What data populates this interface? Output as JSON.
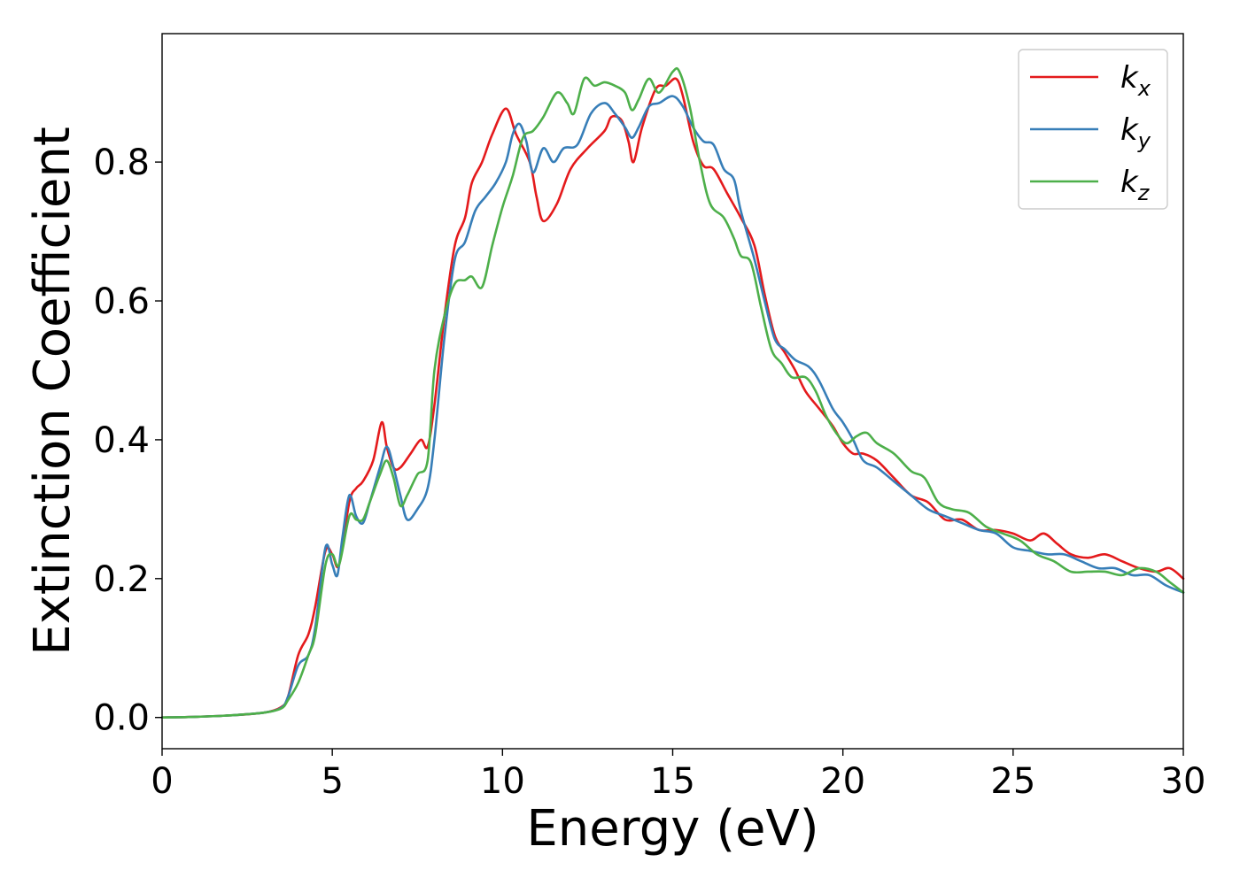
{
  "chart_data": {
    "type": "line",
    "title": "",
    "xlabel": "Energy (eV)",
    "ylabel": "Extinction Coefficient",
    "xlim": [
      0,
      30
    ],
    "ylim": [
      -0.045,
      0.985
    ],
    "xticks": [
      0,
      5,
      10,
      15,
      20,
      25,
      30
    ],
    "xtick_labels": [
      "0",
      "5",
      "10",
      "15",
      "20",
      "25",
      "30"
    ],
    "yticks": [
      0.0,
      0.2,
      0.4,
      0.6,
      0.8
    ],
    "ytick_labels": [
      "0.0",
      "0.2",
      "0.4",
      "0.6",
      "0.8"
    ],
    "grid": false,
    "legend_position": "top-right",
    "series": [
      {
        "name": "k",
        "subscript": "x",
        "color": "#e41a1c",
        "points": [
          [
            0,
            0
          ],
          [
            1,
            0.001
          ],
          [
            2,
            0.003
          ],
          [
            3,
            0.007
          ],
          [
            3.5,
            0.015
          ],
          [
            3.7,
            0.03
          ],
          [
            4.0,
            0.09
          ],
          [
            4.3,
            0.12
          ],
          [
            4.5,
            0.16
          ],
          [
            4.8,
            0.24
          ],
          [
            5.0,
            0.235
          ],
          [
            5.2,
            0.22
          ],
          [
            5.5,
            0.31
          ],
          [
            5.7,
            0.33
          ],
          [
            5.9,
            0.34
          ],
          [
            6.2,
            0.37
          ],
          [
            6.45,
            0.425
          ],
          [
            6.6,
            0.39
          ],
          [
            6.8,
            0.36
          ],
          [
            7.0,
            0.36
          ],
          [
            7.3,
            0.38
          ],
          [
            7.6,
            0.4
          ],
          [
            7.8,
            0.39
          ],
          [
            8.0,
            0.45
          ],
          [
            8.3,
            0.58
          ],
          [
            8.6,
            0.68
          ],
          [
            8.9,
            0.72
          ],
          [
            9.1,
            0.77
          ],
          [
            9.4,
            0.8
          ],
          [
            9.7,
            0.84
          ],
          [
            10.1,
            0.877
          ],
          [
            10.4,
            0.84
          ],
          [
            10.8,
            0.8
          ],
          [
            11.0,
            0.75
          ],
          [
            11.2,
            0.715
          ],
          [
            11.6,
            0.74
          ],
          [
            12.0,
            0.79
          ],
          [
            12.5,
            0.82
          ],
          [
            13.0,
            0.845
          ],
          [
            13.2,
            0.865
          ],
          [
            13.5,
            0.86
          ],
          [
            13.7,
            0.83
          ],
          [
            13.85,
            0.8
          ],
          [
            14.1,
            0.85
          ],
          [
            14.5,
            0.905
          ],
          [
            14.8,
            0.91
          ],
          [
            15.1,
            0.92
          ],
          [
            15.3,
            0.895
          ],
          [
            15.6,
            0.83
          ],
          [
            15.9,
            0.795
          ],
          [
            16.2,
            0.79
          ],
          [
            16.6,
            0.755
          ],
          [
            17.0,
            0.72
          ],
          [
            17.4,
            0.68
          ],
          [
            17.7,
            0.61
          ],
          [
            18.0,
            0.55
          ],
          [
            18.3,
            0.525
          ],
          [
            18.6,
            0.5
          ],
          [
            18.9,
            0.47
          ],
          [
            19.3,
            0.445
          ],
          [
            19.7,
            0.42
          ],
          [
            20.0,
            0.395
          ],
          [
            20.3,
            0.38
          ],
          [
            20.6,
            0.38
          ],
          [
            21.0,
            0.37
          ],
          [
            21.5,
            0.345
          ],
          [
            22.0,
            0.32
          ],
          [
            22.5,
            0.31
          ],
          [
            23.0,
            0.285
          ],
          [
            23.5,
            0.285
          ],
          [
            24.0,
            0.27
          ],
          [
            24.5,
            0.27
          ],
          [
            25.0,
            0.265
          ],
          [
            25.5,
            0.255
          ],
          [
            25.9,
            0.265
          ],
          [
            26.3,
            0.25
          ],
          [
            26.7,
            0.235
          ],
          [
            27.2,
            0.23
          ],
          [
            27.7,
            0.235
          ],
          [
            28.2,
            0.225
          ],
          [
            28.7,
            0.215
          ],
          [
            29.2,
            0.21
          ],
          [
            29.6,
            0.215
          ],
          [
            30.0,
            0.2
          ]
        ]
      },
      {
        "name": "k",
        "subscript": "y",
        "color": "#377eb8",
        "points": [
          [
            0,
            0
          ],
          [
            1,
            0.001
          ],
          [
            2,
            0.003
          ],
          [
            3,
            0.007
          ],
          [
            3.5,
            0.014
          ],
          [
            3.7,
            0.03
          ],
          [
            4.0,
            0.075
          ],
          [
            4.3,
            0.09
          ],
          [
            4.5,
            0.13
          ],
          [
            4.8,
            0.245
          ],
          [
            5.0,
            0.22
          ],
          [
            5.15,
            0.205
          ],
          [
            5.3,
            0.26
          ],
          [
            5.5,
            0.32
          ],
          [
            5.7,
            0.29
          ],
          [
            5.9,
            0.28
          ],
          [
            6.1,
            0.31
          ],
          [
            6.4,
            0.36
          ],
          [
            6.6,
            0.39
          ],
          [
            6.8,
            0.36
          ],
          [
            7.0,
            0.32
          ],
          [
            7.2,
            0.285
          ],
          [
            7.5,
            0.3
          ],
          [
            7.8,
            0.33
          ],
          [
            8.0,
            0.4
          ],
          [
            8.3,
            0.55
          ],
          [
            8.6,
            0.66
          ],
          [
            8.9,
            0.685
          ],
          [
            9.2,
            0.73
          ],
          [
            9.5,
            0.75
          ],
          [
            9.8,
            0.77
          ],
          [
            10.1,
            0.8
          ],
          [
            10.3,
            0.84
          ],
          [
            10.5,
            0.855
          ],
          [
            10.7,
            0.83
          ],
          [
            10.9,
            0.785
          ],
          [
            11.2,
            0.82
          ],
          [
            11.5,
            0.8
          ],
          [
            11.8,
            0.82
          ],
          [
            12.2,
            0.825
          ],
          [
            12.6,
            0.87
          ],
          [
            13.0,
            0.885
          ],
          [
            13.3,
            0.87
          ],
          [
            13.6,
            0.85
          ],
          [
            13.8,
            0.835
          ],
          [
            14.0,
            0.85
          ],
          [
            14.3,
            0.88
          ],
          [
            14.6,
            0.885
          ],
          [
            15.0,
            0.895
          ],
          [
            15.3,
            0.88
          ],
          [
            15.6,
            0.85
          ],
          [
            15.9,
            0.83
          ],
          [
            16.2,
            0.825
          ],
          [
            16.5,
            0.79
          ],
          [
            16.8,
            0.775
          ],
          [
            17.0,
            0.73
          ],
          [
            17.4,
            0.66
          ],
          [
            17.7,
            0.6
          ],
          [
            18.0,
            0.545
          ],
          [
            18.3,
            0.53
          ],
          [
            18.6,
            0.515
          ],
          [
            19.0,
            0.505
          ],
          [
            19.3,
            0.485
          ],
          [
            19.7,
            0.445
          ],
          [
            20.0,
            0.425
          ],
          [
            20.3,
            0.4
          ],
          [
            20.6,
            0.37
          ],
          [
            21.0,
            0.36
          ],
          [
            21.5,
            0.34
          ],
          [
            22.0,
            0.32
          ],
          [
            22.5,
            0.3
          ],
          [
            23.0,
            0.29
          ],
          [
            23.5,
            0.28
          ],
          [
            24.0,
            0.27
          ],
          [
            24.5,
            0.265
          ],
          [
            25.0,
            0.245
          ],
          [
            25.5,
            0.24
          ],
          [
            26.0,
            0.235
          ],
          [
            26.5,
            0.235
          ],
          [
            27.0,
            0.225
          ],
          [
            27.5,
            0.215
          ],
          [
            28.0,
            0.215
          ],
          [
            28.5,
            0.205
          ],
          [
            29.0,
            0.205
          ],
          [
            29.5,
            0.19
          ],
          [
            30.0,
            0.18
          ]
        ]
      },
      {
        "name": "k",
        "subscript": "z",
        "color": "#4daf4a",
        "points": [
          [
            0,
            0
          ],
          [
            1,
            0.001
          ],
          [
            2,
            0.003
          ],
          [
            3,
            0.007
          ],
          [
            3.5,
            0.013
          ],
          [
            3.7,
            0.025
          ],
          [
            4.0,
            0.05
          ],
          [
            4.3,
            0.09
          ],
          [
            4.5,
            0.12
          ],
          [
            4.8,
            0.22
          ],
          [
            5.0,
            0.235
          ],
          [
            5.2,
            0.22
          ],
          [
            5.5,
            0.29
          ],
          [
            5.7,
            0.285
          ],
          [
            5.9,
            0.285
          ],
          [
            6.1,
            0.31
          ],
          [
            6.4,
            0.35
          ],
          [
            6.6,
            0.37
          ],
          [
            6.8,
            0.345
          ],
          [
            7.0,
            0.305
          ],
          [
            7.2,
            0.32
          ],
          [
            7.5,
            0.35
          ],
          [
            7.8,
            0.37
          ],
          [
            8.0,
            0.5
          ],
          [
            8.3,
            0.58
          ],
          [
            8.6,
            0.625
          ],
          [
            8.9,
            0.63
          ],
          [
            9.1,
            0.635
          ],
          [
            9.4,
            0.62
          ],
          [
            9.7,
            0.68
          ],
          [
            10.0,
            0.735
          ],
          [
            10.3,
            0.78
          ],
          [
            10.6,
            0.835
          ],
          [
            10.9,
            0.845
          ],
          [
            11.2,
            0.865
          ],
          [
            11.6,
            0.9
          ],
          [
            11.9,
            0.885
          ],
          [
            12.1,
            0.87
          ],
          [
            12.4,
            0.92
          ],
          [
            12.7,
            0.91
          ],
          [
            13.0,
            0.915
          ],
          [
            13.3,
            0.91
          ],
          [
            13.6,
            0.9
          ],
          [
            13.8,
            0.875
          ],
          [
            14.0,
            0.89
          ],
          [
            14.3,
            0.92
          ],
          [
            14.6,
            0.9
          ],
          [
            15.0,
            0.93
          ],
          [
            15.2,
            0.93
          ],
          [
            15.5,
            0.88
          ],
          [
            15.8,
            0.8
          ],
          [
            16.1,
            0.74
          ],
          [
            16.5,
            0.72
          ],
          [
            16.8,
            0.69
          ],
          [
            17.0,
            0.665
          ],
          [
            17.3,
            0.655
          ],
          [
            17.6,
            0.59
          ],
          [
            17.9,
            0.53
          ],
          [
            18.2,
            0.51
          ],
          [
            18.5,
            0.49
          ],
          [
            18.9,
            0.49
          ],
          [
            19.2,
            0.47
          ],
          [
            19.5,
            0.435
          ],
          [
            19.8,
            0.41
          ],
          [
            20.1,
            0.395
          ],
          [
            20.4,
            0.405
          ],
          [
            20.7,
            0.41
          ],
          [
            21.0,
            0.395
          ],
          [
            21.5,
            0.38
          ],
          [
            22.0,
            0.355
          ],
          [
            22.4,
            0.345
          ],
          [
            22.8,
            0.31
          ],
          [
            23.2,
            0.3
          ],
          [
            23.7,
            0.295
          ],
          [
            24.2,
            0.275
          ],
          [
            24.7,
            0.265
          ],
          [
            25.2,
            0.255
          ],
          [
            25.7,
            0.235
          ],
          [
            26.2,
            0.225
          ],
          [
            26.7,
            0.21
          ],
          [
            27.2,
            0.21
          ],
          [
            27.7,
            0.21
          ],
          [
            28.2,
            0.205
          ],
          [
            28.7,
            0.215
          ],
          [
            29.2,
            0.21
          ],
          [
            29.6,
            0.195
          ],
          [
            30.0,
            0.18
          ]
        ]
      }
    ]
  }
}
